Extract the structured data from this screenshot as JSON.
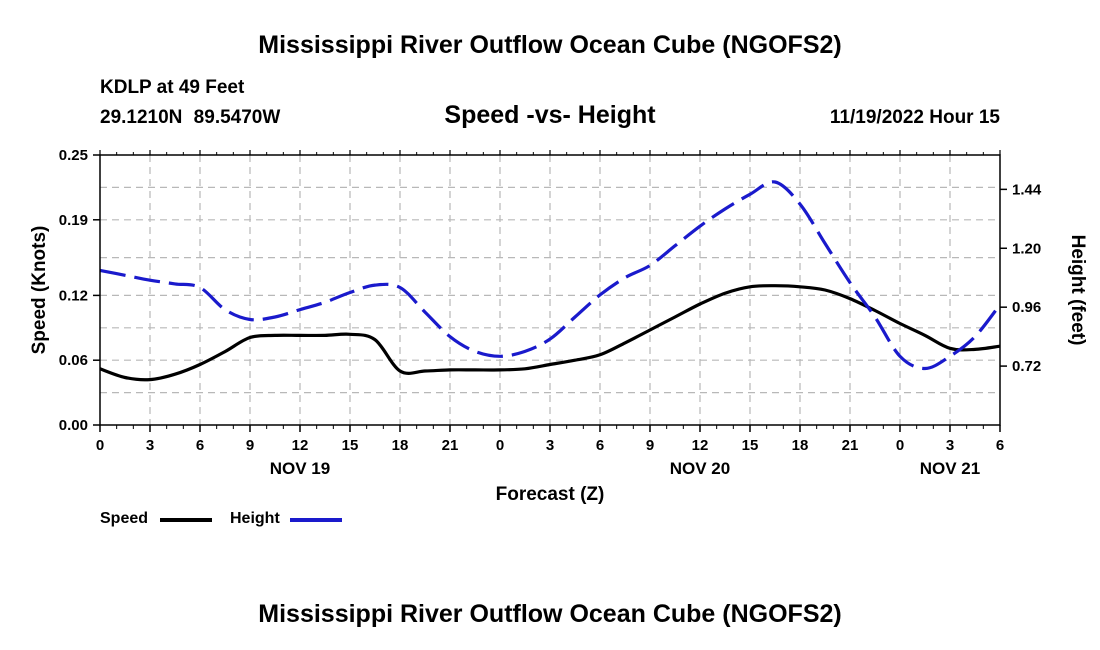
{
  "header": {
    "title": "Mississippi River Outflow Ocean Cube (NGOFS2)",
    "station": "KDLP at 49 Feet",
    "coords": "29.1210N  89.5470W",
    "subtitle": "Speed -vs- Height",
    "datetime": "11/19/2022 Hour 15"
  },
  "footer": {
    "title": "Mississippi River Outflow Ocean Cube (NGOFS2)"
  },
  "legend": {
    "speed_label": "Speed",
    "height_label": "Height"
  },
  "chart_data": {
    "type": "line",
    "xlabel": "Forecast (Z)",
    "ylabel_left": "Speed (Knots)",
    "ylabel_right": "Height (feet)",
    "x_range_hours": [
      0,
      54
    ],
    "x_tick_hours": [
      0,
      3,
      6,
      9,
      12,
      15,
      18,
      21,
      24,
      27,
      30,
      33,
      36,
      39,
      42,
      45,
      48,
      51,
      54
    ],
    "x_tick_labels": [
      "0",
      "3",
      "6",
      "9",
      "12",
      "15",
      "18",
      "21",
      "0",
      "3",
      "6",
      "9",
      "12",
      "15",
      "18",
      "21",
      "0",
      "3",
      "6"
    ],
    "date_labels": [
      {
        "hour": 12,
        "label": "NOV 19"
      },
      {
        "hour": 36,
        "label": "NOV 20"
      },
      {
        "hour": 51,
        "label": "NOV 21"
      }
    ],
    "left_axis": {
      "ylim": [
        0,
        0.25
      ],
      "ticks": [
        0.0,
        0.06,
        0.12,
        0.19,
        0.25
      ],
      "tick_labels": [
        "0.00",
        "0.06",
        "0.12",
        "0.19",
        "0.25"
      ]
    },
    "right_axis": {
      "ylim": [
        0.48,
        1.58
      ],
      "ticks": [
        0.72,
        0.96,
        1.2,
        1.44
      ],
      "tick_labels": [
        "0.72",
        "0.96",
        "1.20",
        "1.44"
      ]
    },
    "grid": true,
    "series": [
      {
        "name": "Speed",
        "axis": "left",
        "color": "#000000",
        "dash": "solid",
        "x": [
          0,
          1.5,
          3,
          4.5,
          6,
          7.5,
          9,
          10.5,
          12,
          13.5,
          15,
          16.5,
          18,
          19.5,
          21,
          22.5,
          24,
          25.5,
          27,
          28.5,
          30,
          31.5,
          33,
          34.5,
          36,
          37.5,
          39,
          40.5,
          42,
          43.5,
          45,
          46.5,
          48,
          49.5,
          51,
          52.5,
          54
        ],
        "values": [
          0.052,
          0.044,
          0.042,
          0.047,
          0.056,
          0.068,
          0.081,
          0.083,
          0.083,
          0.083,
          0.084,
          0.079,
          0.05,
          0.05,
          0.051,
          0.051,
          0.051,
          0.052,
          0.056,
          0.06,
          0.065,
          0.076,
          0.088,
          0.1,
          0.112,
          0.122,
          0.128,
          0.129,
          0.128,
          0.125,
          0.117,
          0.106,
          0.094,
          0.083,
          0.071,
          0.07,
          0.073
        ]
      },
      {
        "name": "Height",
        "axis": "right",
        "color": "#1a1acc",
        "dash": "dashed",
        "x": [
          0,
          1.5,
          3,
          4.5,
          6,
          7.5,
          9,
          10.5,
          12,
          13.5,
          15,
          16.5,
          18,
          19.5,
          21,
          22.5,
          24,
          25.5,
          27,
          28.5,
          30,
          31.5,
          33,
          34.5,
          36,
          37.5,
          39,
          40.5,
          42,
          43.5,
          45,
          46.5,
          48,
          49.5,
          51,
          52.5,
          54
        ],
        "values": [
          1.11,
          1.09,
          1.07,
          1.055,
          1.04,
          0.95,
          0.91,
          0.92,
          0.95,
          0.98,
          1.02,
          1.05,
          1.04,
          0.94,
          0.84,
          0.78,
          0.76,
          0.78,
          0.83,
          0.92,
          1.01,
          1.08,
          1.13,
          1.21,
          1.29,
          1.36,
          1.42,
          1.47,
          1.38,
          1.22,
          1.06,
          0.92,
          0.76,
          0.71,
          0.76,
          0.84,
          0.97
        ]
      }
    ]
  }
}
